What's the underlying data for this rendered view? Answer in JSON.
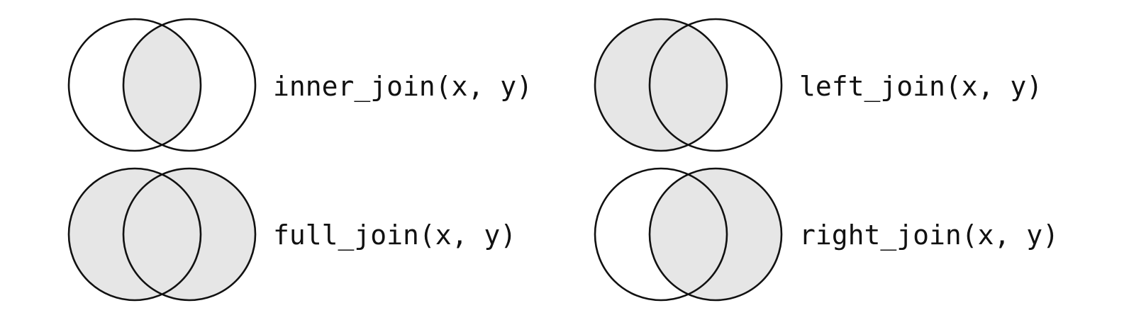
{
  "colors": {
    "shaded": "#e6e6e6",
    "unshaded": "#ffffff",
    "outline": "#111111"
  },
  "joins": {
    "inner": {
      "label": "inner_join(x, y)",
      "x_only_shaded": false,
      "overlap_shaded": true,
      "y_only_shaded": false
    },
    "left": {
      "label": "left_join(x, y)",
      "x_only_shaded": true,
      "overlap_shaded": true,
      "y_only_shaded": false
    },
    "full": {
      "label": "full_join(x, y)",
      "x_only_shaded": true,
      "overlap_shaded": true,
      "y_only_shaded": true
    },
    "right": {
      "label": "right_join(x, y)",
      "x_only_shaded": false,
      "overlap_shaded": true,
      "y_only_shaded": true
    }
  }
}
